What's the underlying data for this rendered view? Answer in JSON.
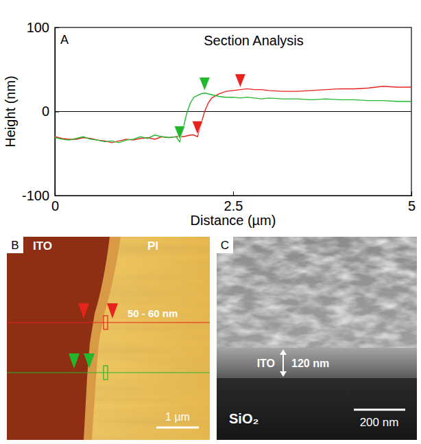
{
  "chart_data": {
    "type": "line",
    "title": "Section Analysis",
    "x_label": "Distance (µm)",
    "y_label": "Height (nm)",
    "x": [
      0,
      0.1,
      0.2,
      0.3,
      0.4,
      0.5,
      0.6,
      0.7,
      0.8,
      0.9,
      1.0,
      1.1,
      1.2,
      1.3,
      1.4,
      1.5,
      1.6,
      1.7,
      1.75,
      1.8,
      1.85,
      1.9,
      1.95,
      2.0,
      2.05,
      2.1,
      2.15,
      2.2,
      2.3,
      2.4,
      2.5,
      2.6,
      2.7,
      2.8,
      2.9,
      3.0,
      3.2,
      3.4,
      3.6,
      3.8,
      4.0,
      4.2,
      4.4,
      4.6,
      4.8,
      5.0
    ],
    "series": [
      {
        "color": "#e8231e",
        "values": [
          -30,
          -32,
          -33,
          -33,
          -31,
          -32,
          -34,
          -35,
          -37,
          -35,
          -33,
          -34,
          -32,
          -31,
          -33,
          -30,
          -31,
          -30,
          -29,
          -30,
          -29,
          -28,
          -28,
          -30,
          -15,
          0,
          10,
          16,
          21,
          24,
          25,
          26,
          27,
          26,
          26,
          25,
          24,
          24,
          25,
          26,
          27,
          27,
          28,
          30,
          29,
          29
        ],
        "cursors": [
          {
            "x": 2.0,
            "y": -30
          },
          {
            "x": 2.6,
            "y": 26
          }
        ]
      },
      {
        "color": "#22b82e",
        "values": [
          -31,
          -33,
          -34,
          -32,
          -30,
          -33,
          -34,
          -36,
          -35,
          -37,
          -34,
          -33,
          -30,
          -32,
          -28,
          -30,
          -31,
          -30,
          -36,
          -20,
          -2,
          10,
          17,
          19,
          21,
          22,
          21,
          20,
          18,
          17,
          17,
          16,
          17,
          16,
          15,
          16,
          15,
          15,
          14,
          15,
          14,
          14,
          13,
          13,
          12,
          12
        ],
        "cursors": [
          {
            "x": 1.75,
            "y": -36
          },
          {
            "x": 2.1,
            "y": 22
          }
        ]
      }
    ],
    "reference_line": 0,
    "xlim": [
      0,
      5
    ],
    "xticks": [
      0,
      2.5,
      5
    ],
    "ylim": [
      -100,
      100
    ],
    "yticks": [
      -100,
      0,
      100
    ],
    "grid": false
  },
  "panel_letters": [
    "A",
    "B",
    "C"
  ],
  "afm_image": {
    "labels": [
      "ITO",
      "PI"
    ],
    "step_label": "50 - 60 nm",
    "scale_bar": "1 µm"
  },
  "sem_image": {
    "layer_labels": [
      "ITO",
      "SiO₂"
    ],
    "thickness_label": "120 nm",
    "scale_bar": "200 nm"
  }
}
